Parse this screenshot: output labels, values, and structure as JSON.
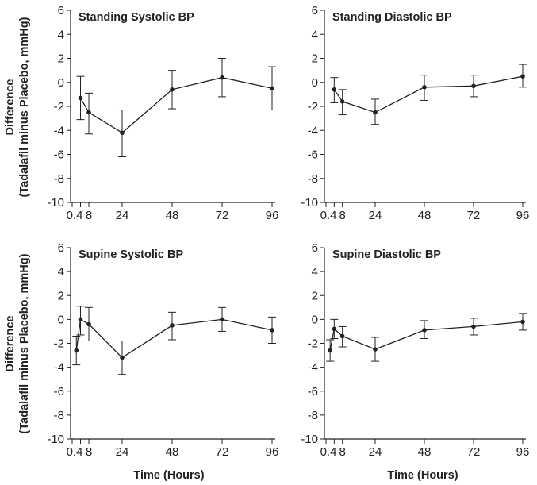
{
  "figure": {
    "ylabel_line1": "Difference",
    "ylabel_line2": "(Tadalafil minus Placebo, mmHg)",
    "xlabel": "Time (Hours)"
  },
  "chart_data": [
    {
      "type": "line",
      "title": "Standing Systolic BP",
      "xlabel": "Time (Hours)",
      "ylabel": "Difference (Tadalafil minus Placebo, mmHg)",
      "ylim": [
        -10,
        6
      ],
      "yticks": [
        6,
        4,
        2,
        0,
        -2,
        -4,
        -6,
        -8,
        -10
      ],
      "xticks": [
        0,
        4,
        8,
        24,
        48,
        72,
        96
      ],
      "xtick_labels": [
        "0.4",
        "",
        "8",
        "24",
        "48",
        "72",
        "96"
      ],
      "series": [
        {
          "name": "Standing Systolic BP",
          "x": [
            4,
            8,
            24,
            48,
            72,
            96
          ],
          "y": [
            -1.3,
            -2.5,
            -4.2,
            -0.6,
            0.4,
            -0.5
          ],
          "err_low": [
            -3.1,
            -4.3,
            -6.2,
            -2.2,
            -1.2,
            -2.3
          ],
          "err_high": [
            0.5,
            -0.9,
            -2.3,
            1.0,
            2.0,
            1.3
          ]
        }
      ]
    },
    {
      "type": "line",
      "title": "Standing Diastolic BP",
      "xlabel": "Time (Hours)",
      "ylabel": "Difference (Tadalafil minus Placebo, mmHg)",
      "ylim": [
        -10,
        6
      ],
      "yticks": [
        6,
        4,
        2,
        0,
        -2,
        -4,
        -6,
        -8,
        -10
      ],
      "xticks": [
        0,
        4,
        8,
        24,
        48,
        72,
        96
      ],
      "xtick_labels": [
        "0.4",
        "",
        "8",
        "24",
        "48",
        "72",
        "96"
      ],
      "series": [
        {
          "name": "Standing Diastolic BP",
          "x": [
            4,
            8,
            24,
            48,
            72,
            96
          ],
          "y": [
            -0.6,
            -1.6,
            -2.5,
            -0.4,
            -0.3,
            0.5
          ],
          "err_low": [
            -1.7,
            -2.7,
            -3.5,
            -1.5,
            -1.2,
            -0.4
          ],
          "err_high": [
            0.4,
            -0.6,
            -1.4,
            0.6,
            0.6,
            1.5
          ]
        }
      ]
    },
    {
      "type": "line",
      "title": "Supine Systolic BP",
      "xlabel": "Time (Hours)",
      "ylabel": "Difference (Tadalafil minus Placebo, mmHg)",
      "ylim": [
        -10,
        6
      ],
      "yticks": [
        6,
        4,
        2,
        0,
        -2,
        -4,
        -6,
        -8,
        -10
      ],
      "xticks": [
        0,
        4,
        8,
        24,
        48,
        72,
        96
      ],
      "xtick_labels": [
        "0.4",
        "",
        "8",
        "24",
        "48",
        "72",
        "96"
      ],
      "series": [
        {
          "name": "Supine Systolic BP",
          "x": [
            2,
            4,
            8,
            24,
            48,
            72,
            96
          ],
          "y": [
            -2.6,
            0.0,
            -0.4,
            -3.2,
            -0.5,
            0.0,
            -0.9
          ],
          "err_low": [
            -3.8,
            -1.3,
            -1.8,
            -4.6,
            -1.7,
            -1.0,
            -2.0
          ],
          "err_high": [
            -1.4,
            1.1,
            1.0,
            -1.8,
            0.6,
            1.0,
            0.2
          ]
        }
      ]
    },
    {
      "type": "line",
      "title": "Supine Diastolic BP",
      "xlabel": "Time (Hours)",
      "ylabel": "Difference (Tadalafil minus Placebo, mmHg)",
      "ylim": [
        -10,
        6
      ],
      "yticks": [
        6,
        4,
        2,
        0,
        -2,
        -4,
        -6,
        -8,
        -10
      ],
      "xticks": [
        0,
        4,
        8,
        24,
        48,
        72,
        96
      ],
      "xtick_labels": [
        "0.4",
        "",
        "8",
        "24",
        "48",
        "72",
        "96"
      ],
      "series": [
        {
          "name": "Supine Diastolic BP",
          "x": [
            2,
            4,
            8,
            24,
            48,
            72,
            96
          ],
          "y": [
            -2.6,
            -0.8,
            -1.4,
            -2.5,
            -0.9,
            -0.6,
            -0.2
          ],
          "err_low": [
            -3.5,
            -1.6,
            -2.3,
            -3.5,
            -1.6,
            -1.3,
            -0.9
          ],
          "err_high": [
            -1.7,
            0.0,
            -0.6,
            -1.5,
            -0.1,
            0.1,
            0.5
          ]
        }
      ]
    }
  ]
}
